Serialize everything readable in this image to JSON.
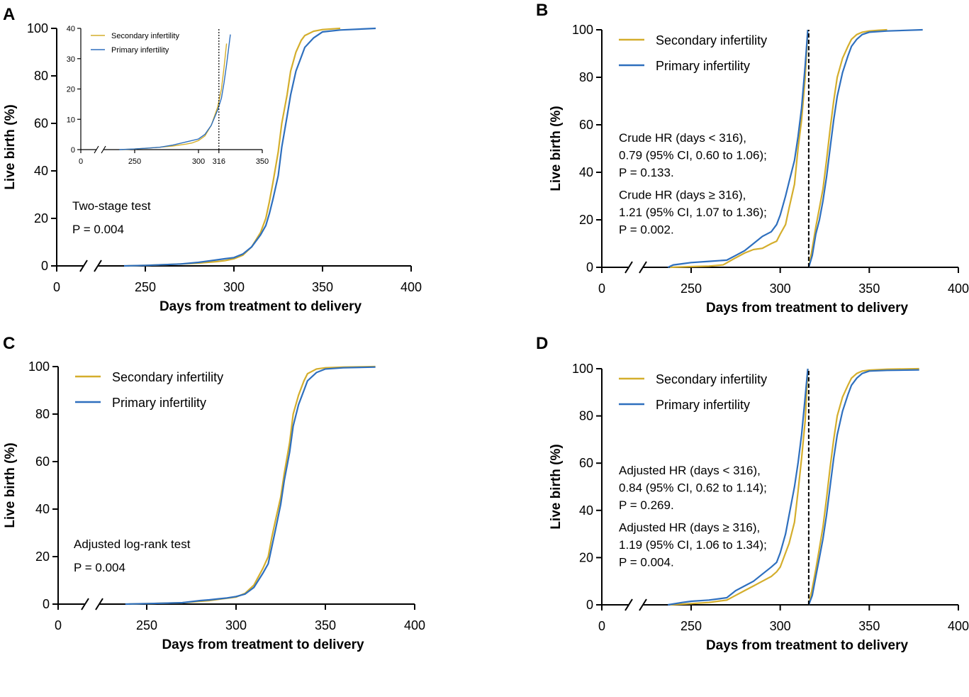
{
  "colors": {
    "secondary": "#D4AE2C",
    "primary": "#2E6FBE",
    "axis": "#000000"
  },
  "chart_data": [
    {
      "panel": "A",
      "type": "line",
      "xlabel": "Days from treatment to delivery",
      "ylabel": "Live birth (%)",
      "xlim": [
        230,
        400
      ],
      "ylim": [
        0,
        100
      ],
      "xticks": [
        "0",
        "250",
        "300",
        "350",
        "400"
      ],
      "yticks": [
        "0",
        "20",
        "40",
        "60",
        "80",
        "100"
      ],
      "annotations": [
        "Two-stage test",
        "P = 0.004"
      ],
      "legend": [
        "Secondary infertility",
        "Primary infertility"
      ],
      "legend_position": "inset-top-left",
      "series": [
        {
          "name": "Secondary infertility",
          "key": "secondary",
          "x": [
            240,
            250,
            260,
            270,
            280,
            285,
            290,
            295,
            300,
            305,
            310,
            315,
            318,
            320,
            322,
            325,
            327,
            330,
            332,
            335,
            338,
            340,
            345,
            350,
            360
          ],
          "y": [
            0,
            0.2,
            0.5,
            0.8,
            1.2,
            1.5,
            1.8,
            2.2,
            3,
            4.5,
            8,
            14,
            20,
            27,
            35,
            48,
            60,
            72,
            82,
            90,
            95,
            97,
            98.8,
            99.5,
            100
          ]
        },
        {
          "name": "Primary infertility",
          "key": "primary",
          "x": [
            238,
            250,
            260,
            270,
            280,
            285,
            290,
            295,
            300,
            305,
            310,
            315,
            318,
            320,
            322,
            325,
            327,
            330,
            332,
            335,
            338,
            340,
            345,
            350,
            360,
            380
          ],
          "y": [
            0,
            0.2,
            0.5,
            0.8,
            1.5,
            2,
            2.5,
            3,
            3.5,
            5,
            8,
            13,
            17,
            22,
            28,
            38,
            50,
            63,
            72,
            82,
            88,
            92,
            96,
            98.5,
            99.3,
            100
          ]
        }
      ],
      "inset": {
        "xlim": [
          230,
          350
        ],
        "ylim": [
          0,
          40
        ],
        "xticks": [
          "0",
          "250",
          "300",
          "316",
          "350"
        ],
        "yticks": [
          "0",
          "10",
          "20",
          "30",
          "40"
        ],
        "cutoff": 316,
        "legend": [
          "Secondary infertility",
          "Primary infertility"
        ]
      }
    },
    {
      "panel": "B",
      "type": "line",
      "xlabel": "Days from treatment to delivery",
      "ylabel": "Live birth (%)",
      "xlim": [
        230,
        400
      ],
      "ylim": [
        0,
        100
      ],
      "xticks": [
        "0",
        "250",
        "300",
        "350",
        "400"
      ],
      "yticks": [
        "0",
        "20",
        "40",
        "60",
        "80",
        "100"
      ],
      "cutoff": 316,
      "legend": [
        "Secondary infertility",
        "Primary infertility"
      ],
      "legend_position": "top-left",
      "annotations": [
        "Crude HR (days < 316),",
        "0.79 (95% CI, 0.60 to 1.06);",
        "P = 0.133.",
        "Crude HR (days ≥ 316),",
        "1.21 (95% CI, 1.07 to 1.36);",
        "P = 0.002."
      ],
      "series": [
        {
          "name": "Secondary infertility",
          "key": "secondary",
          "segment": "before",
          "x": [
            238,
            250,
            260,
            268,
            275,
            280,
            285,
            290,
            295,
            298,
            300,
            303,
            305,
            308,
            310,
            312,
            314,
            315.5
          ],
          "y": [
            0,
            0.3,
            0.5,
            1,
            4,
            6,
            7.5,
            8,
            10,
            11,
            14,
            18,
            25,
            35,
            50,
            62,
            80,
            100
          ]
        },
        {
          "name": "Primary infertility",
          "key": "primary",
          "segment": "before",
          "x": [
            237,
            240,
            245,
            250,
            260,
            270,
            275,
            280,
            285,
            290,
            295,
            298,
            300,
            303,
            305,
            308,
            310,
            312,
            314,
            315.5
          ],
          "y": [
            0,
            1,
            1.5,
            2,
            2.5,
            3,
            5,
            7,
            10,
            13,
            15,
            18,
            22,
            30,
            36,
            45,
            55,
            67,
            85,
            100
          ]
        },
        {
          "name": "Secondary infertility",
          "key": "secondary",
          "segment": "after",
          "x": [
            316,
            318,
            320,
            322,
            324,
            326,
            328,
            330,
            332,
            335,
            338,
            340,
            343,
            346,
            350,
            355,
            360
          ],
          "y": [
            0,
            8,
            17,
            25,
            33,
            45,
            58,
            70,
            80,
            88,
            93,
            96,
            98,
            99,
            99.5,
            99.8,
            100
          ]
        },
        {
          "name": "Primary infertility",
          "key": "primary",
          "segment": "after",
          "x": [
            316,
            318,
            320,
            322,
            324,
            326,
            328,
            330,
            332,
            335,
            338,
            340,
            343,
            346,
            350,
            360,
            380
          ],
          "y": [
            0,
            5,
            14,
            20,
            28,
            38,
            50,
            62,
            72,
            82,
            89,
            93,
            96,
            98,
            99,
            99.5,
            100
          ]
        }
      ]
    },
    {
      "panel": "C",
      "type": "line",
      "xlabel": "Days from treatment to delivery",
      "ylabel": "Live birth (%)",
      "xlim": [
        230,
        400
      ],
      "ylim": [
        0,
        100
      ],
      "xticks": [
        "0",
        "250",
        "300",
        "350",
        "400"
      ],
      "yticks": [
        "0",
        "20",
        "40",
        "60",
        "80",
        "100"
      ],
      "annotations": [
        "Adjusted log-rank test",
        "P = 0.004"
      ],
      "legend": [
        "Secondary infertility",
        "Primary infertility"
      ],
      "legend_position": "top-left",
      "series": [
        {
          "name": "Secondary infertility",
          "key": "secondary",
          "x": [
            240,
            250,
            260,
            270,
            280,
            285,
            290,
            295,
            300,
            305,
            310,
            315,
            318,
            320,
            322,
            325,
            327,
            330,
            332,
            335,
            338,
            340,
            345,
            350,
            360,
            378
          ],
          "y": [
            0,
            0.2,
            0.4,
            0.6,
            1.2,
            1.5,
            2,
            2.5,
            3,
            4.5,
            8,
            15,
            20,
            28,
            35,
            45,
            55,
            68,
            80,
            88,
            94,
            97,
            99,
            99.5,
            99.8,
            100
          ]
        },
        {
          "name": "Primary infertility",
          "key": "primary",
          "x": [
            238,
            250,
            260,
            270,
            280,
            285,
            290,
            295,
            300,
            305,
            310,
            315,
            318,
            320,
            322,
            325,
            327,
            330,
            332,
            335,
            338,
            340,
            345,
            350,
            360,
            378
          ],
          "y": [
            0,
            0.2,
            0.4,
            0.6,
            1.5,
            1.8,
            2.2,
            2.6,
            3.2,
            4.2,
            7,
            13,
            17,
            24,
            31,
            42,
            52,
            64,
            75,
            84,
            90,
            94,
            97.5,
            99,
            99.5,
            99.8
          ]
        }
      ]
    },
    {
      "panel": "D",
      "type": "line",
      "xlabel": "Days from treatment to delivery",
      "ylabel": "Live birth (%)",
      "xlim": [
        230,
        400
      ],
      "ylim": [
        0,
        100
      ],
      "xticks": [
        "0",
        "250",
        "300",
        "350",
        "400"
      ],
      "yticks": [
        "0",
        "20",
        "40",
        "60",
        "80",
        "100"
      ],
      "cutoff": 316,
      "legend": [
        "Secondary infertility",
        "Primary infertility"
      ],
      "legend_position": "top-left",
      "annotations": [
        "Adjusted HR (days < 316),",
        "0.84 (95% CI, 0.62 to 1.14);",
        "P = 0.269.",
        "Adjusted HR (days  ≥ 316),",
        "1.19 (95% CI, 1.06 to 1.34);",
        "P = 0.004."
      ],
      "series": [
        {
          "name": "Secondary infertility",
          "key": "secondary",
          "segment": "before",
          "x": [
            238,
            250,
            260,
            270,
            275,
            280,
            285,
            290,
            295,
            298,
            300,
            303,
            305,
            308,
            310,
            312,
            314,
            315.5
          ],
          "y": [
            0,
            0.5,
            1,
            2,
            4,
            6,
            8,
            10,
            12,
            14,
            16,
            22,
            26,
            35,
            48,
            62,
            78,
            100
          ]
        },
        {
          "name": "Primary infertility",
          "key": "primary",
          "segment": "before",
          "x": [
            237,
            245,
            250,
            260,
            270,
            275,
            280,
            285,
            290,
            295,
            298,
            300,
            303,
            305,
            308,
            310,
            312,
            314,
            315.5
          ],
          "y": [
            0,
            1,
            1.5,
            2,
            3,
            6,
            8,
            10,
            13,
            16,
            18,
            22,
            30,
            38,
            50,
            60,
            72,
            88,
            100
          ]
        },
        {
          "name": "Secondary infertility",
          "key": "secondary",
          "segment": "after",
          "x": [
            316,
            318,
            320,
            322,
            324,
            326,
            328,
            330,
            332,
            335,
            338,
            340,
            343,
            346,
            350,
            355,
            360,
            378
          ],
          "y": [
            0,
            7,
            15,
            24,
            33,
            45,
            58,
            70,
            80,
            88,
            93,
            96,
            98,
            99,
            99.4,
            99.6,
            99.8,
            100
          ]
        },
        {
          "name": "Primary infertility",
          "key": "primary",
          "segment": "after",
          "x": [
            316,
            318,
            320,
            322,
            324,
            326,
            328,
            330,
            332,
            335,
            338,
            340,
            343,
            346,
            350,
            360,
            378
          ],
          "y": [
            0,
            4,
            12,
            20,
            28,
            38,
            50,
            62,
            72,
            82,
            89,
            93,
            96,
            98,
            99,
            99.3,
            99.5
          ]
        }
      ]
    }
  ]
}
